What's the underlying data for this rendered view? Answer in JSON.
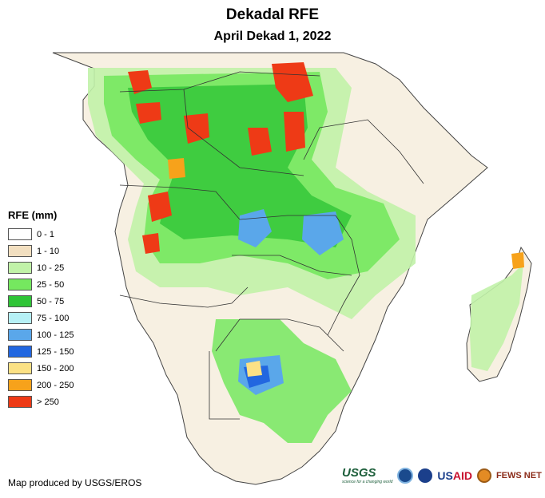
{
  "title": "Dekadal RFE",
  "subtitle": "April Dekad 1, 2022",
  "legend": {
    "title": "RFE (mm)",
    "classes": [
      {
        "label": "0 - 1",
        "color": "#ffffff"
      },
      {
        "label": "1 - 10",
        "color": "#f2dfc0"
      },
      {
        "label": "10 - 25",
        "color": "#c1f2a8"
      },
      {
        "label": "25 - 50",
        "color": "#75e85f"
      },
      {
        "label": "50 - 75",
        "color": "#2fc437"
      },
      {
        "label": "75 - 100",
        "color": "#b6f0f6"
      },
      {
        "label": "100 - 125",
        "color": "#5aa7ea"
      },
      {
        "label": "125 - 150",
        "color": "#2267e0"
      },
      {
        "label": "150 - 200",
        "color": "#fbe185"
      },
      {
        "label": "200 - 250",
        "color": "#f7a21b"
      },
      {
        "label": "> 250",
        "color": "#ee3a16"
      }
    ]
  },
  "credit": "Map produced by USGS/EROS",
  "logos": {
    "usgs": "USGS",
    "usgs_tagline": "science for a changing world",
    "usaid_prefix": "US",
    "usaid_suffix": "AID",
    "fews": "FEWS NET"
  }
}
